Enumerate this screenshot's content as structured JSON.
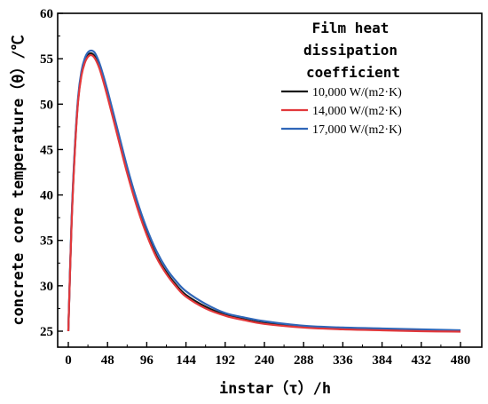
{
  "chart_data": {
    "type": "line",
    "xlabel": "instar（τ）/h",
    "ylabel": "concrete core temperature（θ）/℃",
    "xlim": [
      0,
      480
    ],
    "ylim": [
      25,
      60
    ],
    "x_ticks": [
      "0",
      "48",
      "96",
      "144",
      "192",
      "240",
      "288",
      "336",
      "384",
      "432",
      "480"
    ],
    "y_ticks": [
      "25",
      "30",
      "35",
      "40",
      "45",
      "50",
      "55",
      "60"
    ],
    "legend_title": [
      "Film heat",
      "dissipation",
      "coefficient"
    ],
    "legend_position": "top-right",
    "grid": false,
    "x": [
      0,
      4,
      8,
      12,
      16,
      20,
      24,
      28,
      32,
      36,
      40,
      48,
      60,
      72,
      84,
      96,
      108,
      120,
      132,
      144,
      168,
      192,
      216,
      240,
      288,
      336,
      384,
      432,
      480
    ],
    "series": [
      {
        "name": "10,000 W/(m2·K)",
        "color": "#1a1a1a",
        "values": [
          25.0,
          37.0,
          45.0,
          50.5,
          53.3,
          54.7,
          55.4,
          55.6,
          55.3,
          54.6,
          53.6,
          51.0,
          46.8,
          42.6,
          38.9,
          35.8,
          33.3,
          31.5,
          30.1,
          29.0,
          27.7,
          26.8,
          26.3,
          25.9,
          25.5,
          25.3,
          25.2,
          25.1,
          25.0
        ]
      },
      {
        "name": "14,000 W/(m2·K)",
        "color": "#e2383b",
        "values": [
          25.0,
          36.8,
          44.8,
          50.3,
          53.1,
          54.5,
          55.2,
          55.4,
          55.1,
          54.4,
          53.4,
          50.8,
          46.6,
          42.4,
          38.7,
          35.6,
          33.1,
          31.3,
          29.9,
          28.8,
          27.5,
          26.7,
          26.2,
          25.8,
          25.4,
          25.2,
          25.1,
          25.0,
          24.95
        ]
      },
      {
        "name": "17,000 W/(m2·K)",
        "color": "#2f66b8",
        "values": [
          25.0,
          37.3,
          45.3,
          50.8,
          53.6,
          55.0,
          55.7,
          55.9,
          55.7,
          55.0,
          54.0,
          51.5,
          47.3,
          43.1,
          39.4,
          36.3,
          33.8,
          31.9,
          30.5,
          29.4,
          28.0,
          27.0,
          26.5,
          26.1,
          25.6,
          25.4,
          25.3,
          25.2,
          25.1
        ]
      }
    ]
  }
}
